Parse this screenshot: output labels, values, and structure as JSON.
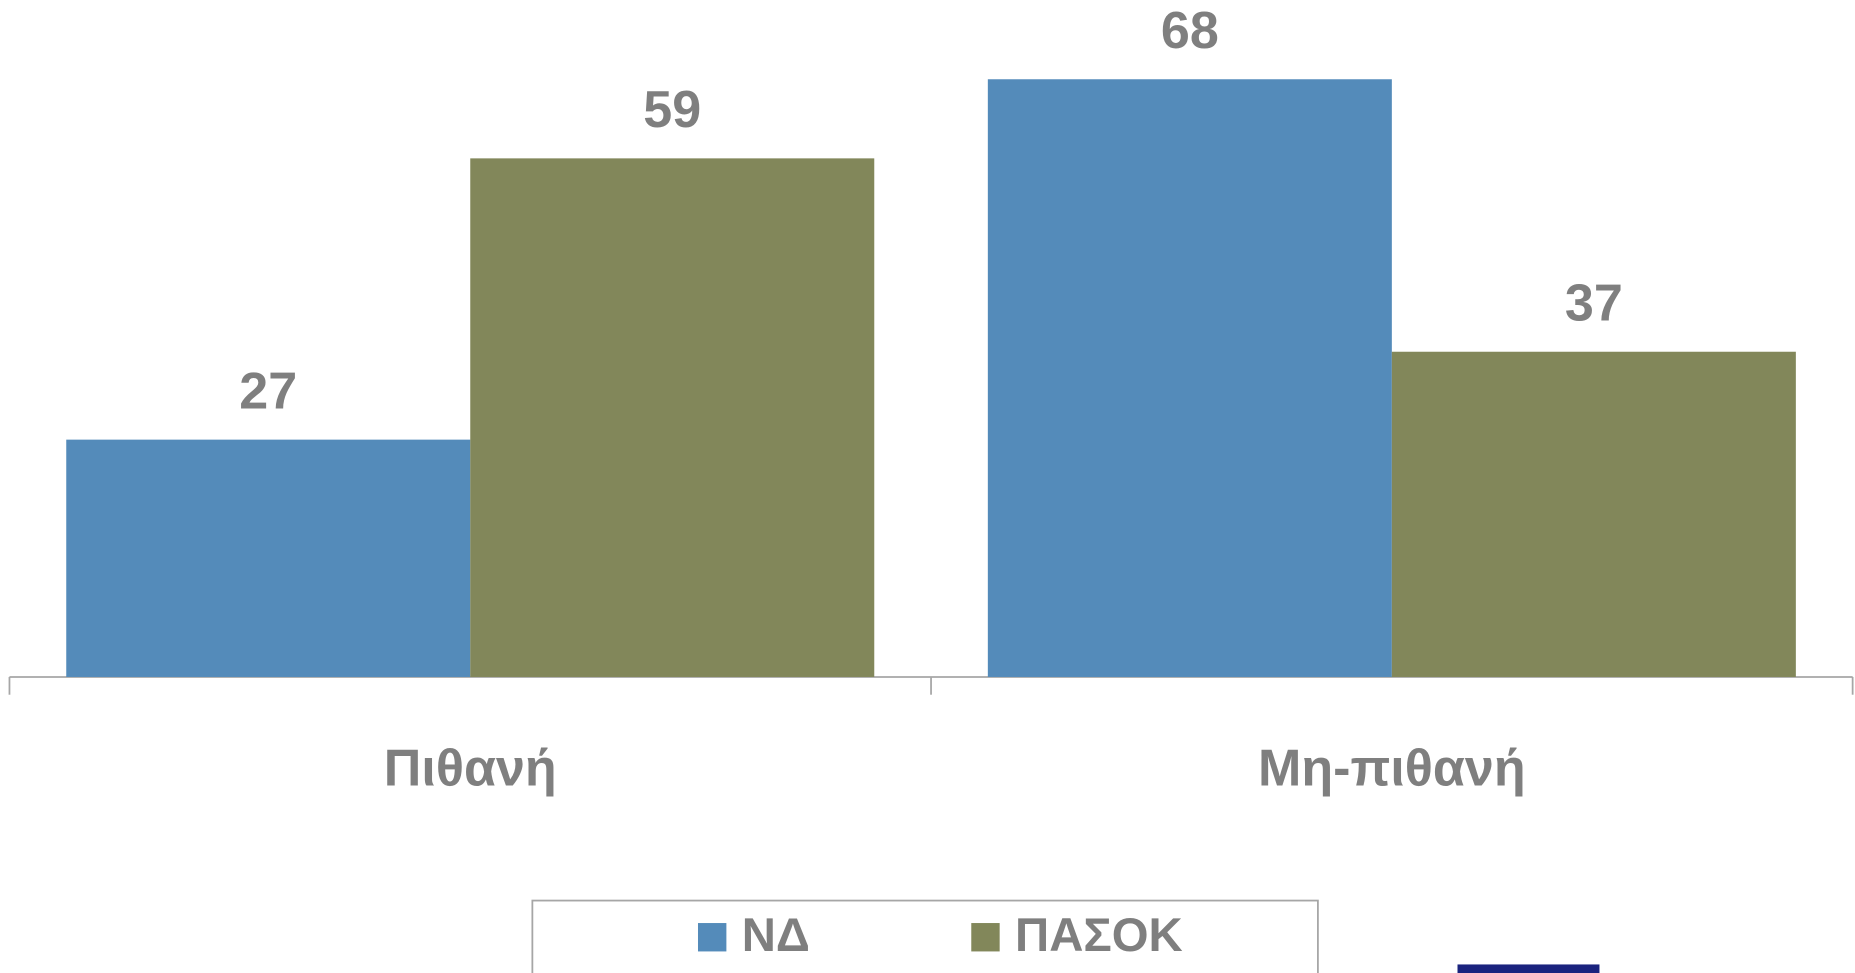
{
  "chart_data": {
    "type": "bar",
    "categories": [
      "Πιθανή",
      "Μη-πιθανή"
    ],
    "series": [
      {
        "name": "ΝΔ",
        "color": "#548bba",
        "values": [
          27,
          68
        ]
      },
      {
        "name": "ΠΑΣΟΚ",
        "color": "#82875a",
        "values": [
          59,
          37
        ]
      }
    ],
    "legend": "bottom"
  }
}
